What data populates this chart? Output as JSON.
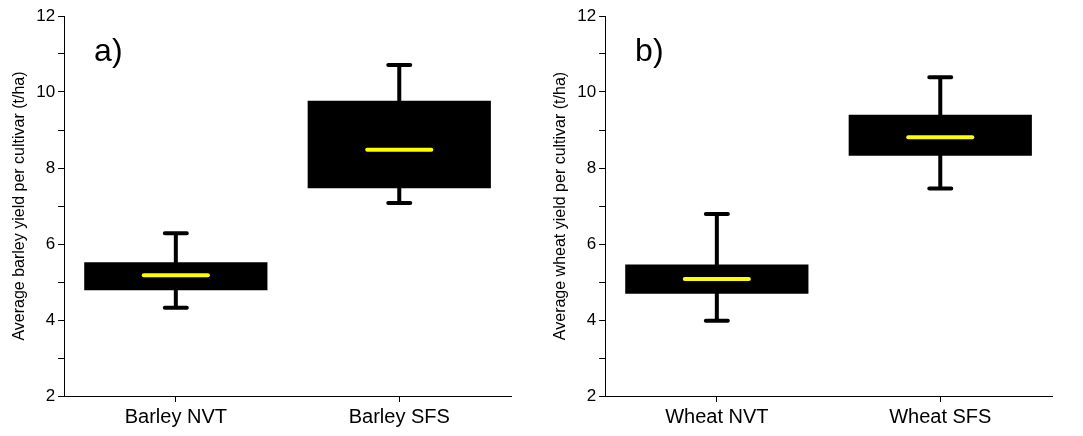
{
  "chart_data": [
    {
      "type": "box",
      "categories": [
        "Barley NVT",
        "Barley SFS"
      ],
      "ylabel": "Average barley yield per cultivar (t/ha)",
      "ylim": [
        2,
        12
      ],
      "yticks": [
        2,
        {
          "value": 3,
          "label": null
        },
        4,
        {
          "value": 5,
          "label": null
        },
        6,
        {
          "value": 7,
          "label": null
        },
        8,
        {
          "value": 9,
          "label": null
        },
        10,
        {
          "value": 11,
          "label": null
        },
        12
      ],
      "annotations": [
        "a)"
      ],
      "series": [
        {
          "color": "#000000",
          "boxes": [
            {
              "low": 4.32,
              "q1": 4.78,
              "median": 5.18,
              "q3": 5.52,
              "high": 6.28
            },
            {
              "low": 7.08,
              "q1": 7.47,
              "median": 8.48,
              "q3": 9.77,
              "high": 10.71
            }
          ]
        }
      ]
    },
    {
      "type": "box",
      "categories": [
        "Wheat NVT",
        "Wheat SFS"
      ],
      "ylabel": "Average wheat yield per cultivar (t/ha)",
      "ylim": [
        2,
        12
      ],
      "yticks": [
        2,
        {
          "value": 3,
          "label": null
        },
        4,
        {
          "value": 5,
          "label": null
        },
        6,
        {
          "value": 7,
          "label": null
        },
        8,
        {
          "value": 9,
          "label": null
        },
        10,
        {
          "value": 11,
          "label": null
        },
        12
      ],
      "annotations": [
        "b)"
      ],
      "series": [
        {
          "color": "#000000",
          "boxes": [
            {
              "low": 3.98,
              "q1": 4.69,
              "median": 5.08,
              "q3": 5.46,
              "high": 6.79
            },
            {
              "low": 7.46,
              "q1": 8.32,
              "median": 8.81,
              "q3": 9.4,
              "high": 10.39
            }
          ]
        }
      ]
    }
  ]
}
